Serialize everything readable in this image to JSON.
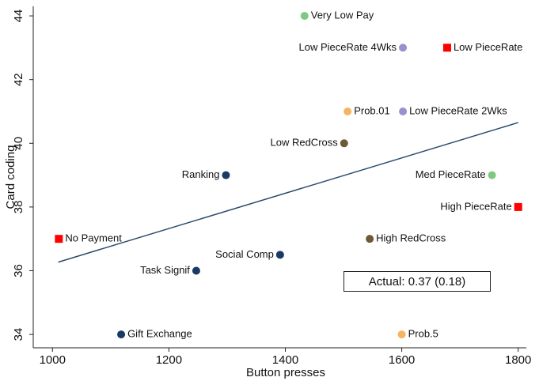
{
  "chart_data": {
    "type": "scatter",
    "x_label": "Button presses",
    "y_label": "Card coding",
    "xlim": [
      967,
      1814
    ],
    "ylim": [
      33.58,
      44.3
    ],
    "xticks": [
      1000,
      1200,
      1400,
      1600,
      1800
    ],
    "yticks": [
      34,
      36,
      38,
      40,
      42,
      44
    ],
    "points": [
      {
        "label": "Very Low Pay",
        "x": 1433,
        "y": 44,
        "color": "#7fc97f",
        "marker": "circle",
        "label_side": "right"
      },
      {
        "label": "Low PieceRate 4Wks",
        "x": 1602,
        "y": 43,
        "color": "#9b8fcf",
        "marker": "circle",
        "label_side": "left"
      },
      {
        "label": "Low PieceRate",
        "x": 1678,
        "y": 43,
        "color": "#ff0000",
        "marker": "square",
        "label_side": "right"
      },
      {
        "label": "Prob.01",
        "x": 1507,
        "y": 41,
        "color": "#f5b461",
        "marker": "circle",
        "label_side": "right"
      },
      {
        "label": "Low PieceRate 2Wks",
        "x": 1602,
        "y": 41,
        "color": "#9b8fcf",
        "marker": "circle",
        "label_side": "right"
      },
      {
        "label": "Low RedCross",
        "x": 1501,
        "y": 40,
        "color": "#6b5a35",
        "marker": "circle",
        "label_side": "left"
      },
      {
        "label": "Ranking",
        "x": 1298,
        "y": 39,
        "color": "#1a3a63",
        "marker": "circle",
        "label_side": "left"
      },
      {
        "label": "Med PieceRate",
        "x": 1755,
        "y": 39,
        "color": "#7fc97f",
        "marker": "circle",
        "label_side": "left"
      },
      {
        "label": "High PieceRate",
        "x": 1800,
        "y": 38,
        "color": "#ff0000",
        "marker": "square",
        "label_side": "left"
      },
      {
        "label": "No Payment",
        "x": 1011,
        "y": 37,
        "color": "#ff0000",
        "marker": "square",
        "label_side": "right"
      },
      {
        "label": "High RedCross",
        "x": 1545,
        "y": 37,
        "color": "#6b5a35",
        "marker": "circle",
        "label_side": "right"
      },
      {
        "label": "Social Comp",
        "x": 1391,
        "y": 36.5,
        "color": "#1a3a63",
        "marker": "circle",
        "label_side": "left"
      },
      {
        "label": "Task Signif",
        "x": 1247,
        "y": 36,
        "color": "#1a3a63",
        "marker": "circle",
        "label_side": "left"
      },
      {
        "label": "Gift Exchange",
        "x": 1118,
        "y": 34,
        "color": "#1a3a63",
        "marker": "circle",
        "label_side": "right"
      },
      {
        "label": "Prob.5",
        "x": 1600,
        "y": 34,
        "color": "#f5b461",
        "marker": "circle",
        "label_side": "right"
      }
    ],
    "fit_line": {
      "x": [
        1010,
        1800
      ],
      "y": [
        36.27,
        40.65
      ],
      "color": "#2b4a6b"
    },
    "annotation": "Actual: 0.37 (0.18)"
  }
}
